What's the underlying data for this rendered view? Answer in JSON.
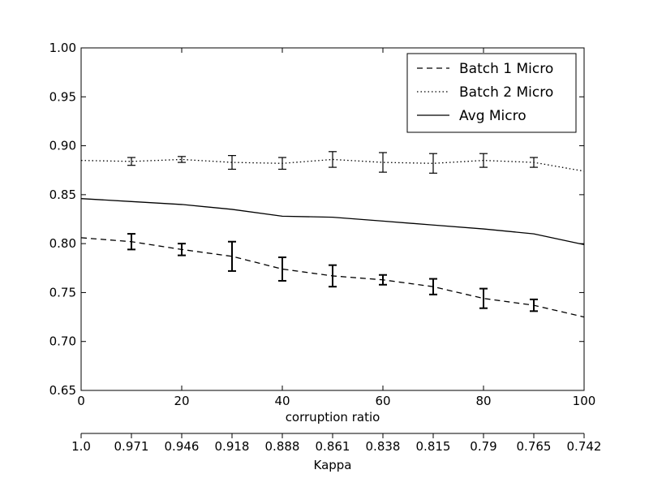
{
  "chart_data": {
    "type": "line",
    "xlabel": "corruption ratio",
    "secondary_xlabel": "Kappa",
    "xlim": [
      0,
      100
    ],
    "ylim": [
      0.65,
      1.0
    ],
    "x_ticks": [
      0,
      20,
      40,
      60,
      80,
      100
    ],
    "x_tick_labels": [
      "0",
      "20",
      "40",
      "60",
      "80",
      "100"
    ],
    "y_ticks": [
      0.65,
      0.7,
      0.75,
      0.8,
      0.85,
      0.9,
      0.95,
      1.0
    ],
    "y_tick_labels": [
      "0.65",
      "0.70",
      "0.75",
      "0.80",
      "0.85",
      "0.90",
      "0.95",
      "1.00"
    ],
    "secondary_x_ticks": [
      0,
      10,
      20,
      30,
      40,
      50,
      60,
      70,
      80,
      90,
      100
    ],
    "secondary_x_tick_labels": [
      "1.0",
      "0.971",
      "0.946",
      "0.918",
      "0.888",
      "0.861",
      "0.838",
      "0.815",
      "0.79",
      "0.765",
      "0.742"
    ],
    "grid": false,
    "legend_position": "top-right",
    "x": [
      0,
      10,
      20,
      30,
      40,
      50,
      60,
      70,
      80,
      90,
      100
    ],
    "series": [
      {
        "name": "Batch 1 Micro",
        "style": "dashed",
        "color": "#000000",
        "values": [
          0.806,
          0.802,
          0.794,
          0.787,
          0.774,
          0.767,
          0.763,
          0.756,
          0.744,
          0.737,
          0.725
        ],
        "error": [
          null,
          0.008,
          0.006,
          0.015,
          0.012,
          0.011,
          0.005,
          0.008,
          0.01,
          0.006,
          null
        ]
      },
      {
        "name": "Batch 2 Micro",
        "style": "dotted",
        "color": "#000000",
        "values": [
          0.885,
          0.884,
          0.886,
          0.883,
          0.882,
          0.886,
          0.883,
          0.882,
          0.885,
          0.883,
          0.874
        ],
        "error": [
          null,
          0.004,
          0.003,
          0.007,
          0.006,
          0.008,
          0.01,
          0.01,
          0.007,
          0.005,
          null
        ]
      },
      {
        "name": "Avg Micro",
        "style": "solid",
        "color": "#000000",
        "values": [
          0.846,
          0.843,
          0.84,
          0.835,
          0.828,
          0.827,
          0.823,
          0.819,
          0.815,
          0.81,
          0.799
        ],
        "error": null
      }
    ]
  }
}
